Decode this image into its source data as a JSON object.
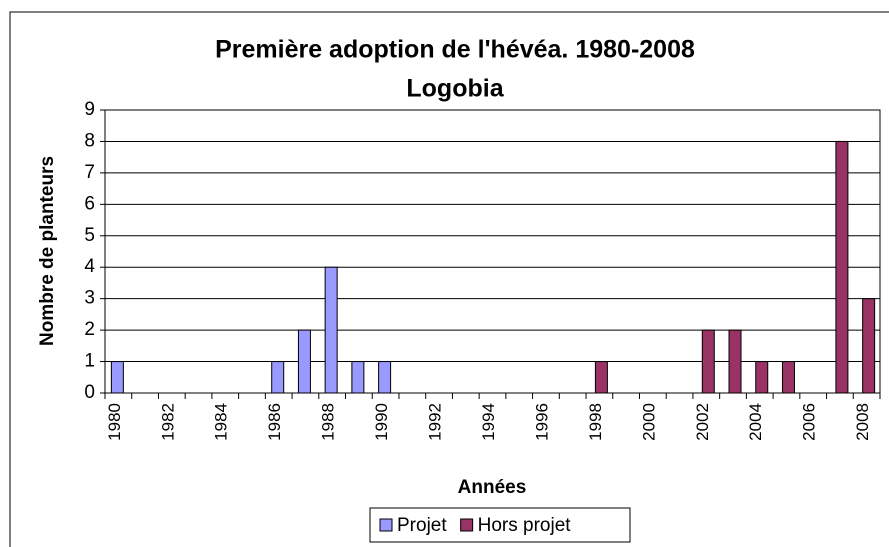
{
  "chart_data": {
    "type": "bar",
    "title": "Première adoption de l'hévéa. 1980-2008",
    "subtitle": "Logobia",
    "x_label": "Années",
    "y_label": "Nombre de planteurs",
    "categories": [
      "1980",
      null,
      "1982",
      null,
      "1984",
      null,
      "1986",
      null,
      "1988",
      null,
      "1990",
      null,
      "1992",
      null,
      "1994",
      null,
      "1996",
      null,
      "1998",
      null,
      "2000",
      null,
      "2002",
      null,
      "2004",
      null,
      "2006",
      null,
      "2008"
    ],
    "series": [
      {
        "name": "Projet",
        "color": "#9999ff",
        "values": [
          1,
          0,
          0,
          0,
          0,
          0,
          1,
          2,
          4,
          1,
          1,
          0,
          0,
          0,
          0,
          0,
          0,
          0,
          0,
          0,
          0,
          0,
          0,
          0,
          0,
          0,
          0,
          0,
          0
        ]
      },
      {
        "name": "Hors projet",
        "color": "#993366",
        "values": [
          0,
          0,
          0,
          0,
          0,
          0,
          0,
          0,
          0,
          0,
          0,
          0,
          0,
          0,
          0,
          0,
          0,
          0,
          1,
          0,
          0,
          0,
          2,
          2,
          1,
          1,
          0,
          8,
          3
        ]
      }
    ],
    "ylim": [
      0,
      9
    ],
    "yticks": [
      0,
      1,
      2,
      3,
      4,
      5,
      6,
      7,
      8,
      9
    ],
    "grid": true,
    "legend": "bottom"
  }
}
